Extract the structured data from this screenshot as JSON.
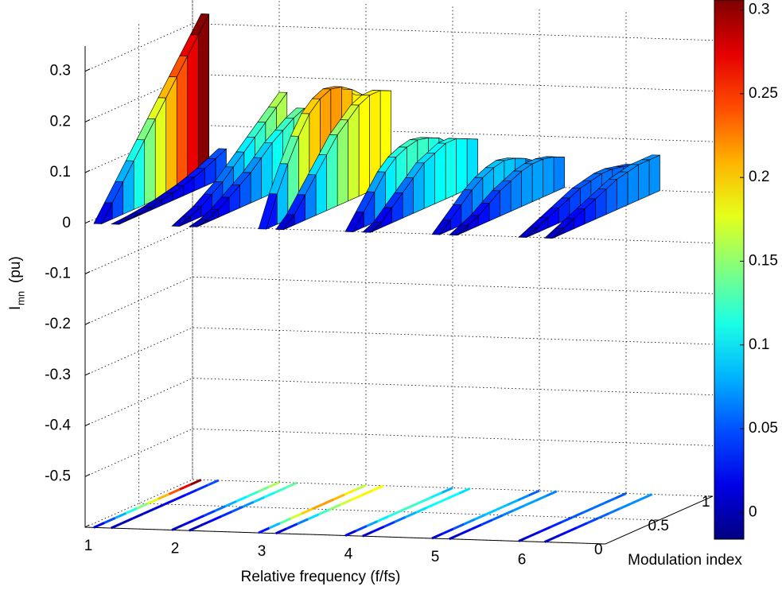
{
  "chart_data": {
    "type": "surface3d",
    "xlabel": "Relative frequency (f/fs)",
    "ylabel": "Modulation index",
    "zlabel": "I",
    "zlabel_sub": "mn",
    "zlabel_unit": "(pu)",
    "xlim": [
      1,
      7
    ],
    "xticks": [
      1,
      2,
      3,
      4,
      5,
      6
    ],
    "ylim": [
      0,
      1
    ],
    "yticks": [
      0,
      0.5,
      1
    ],
    "zlim": [
      -0.6,
      0.35
    ],
    "zticks": [
      -0.5,
      -0.4,
      -0.3,
      -0.2,
      -0.1,
      0,
      0.1,
      0.2,
      0.3
    ],
    "clim": [
      -0.016,
      0.306
    ],
    "cticks": [
      0,
      0.05,
      0.1,
      0.15,
      0.2,
      0.25,
      0.3
    ],
    "grid": true,
    "m": [
      0,
      0.1,
      0.2,
      0.3,
      0.4,
      0.5,
      0.6,
      0.7,
      0.8,
      0.9,
      1
    ],
    "series": [
      {
        "x": 1.1,
        "values": [
          0,
          0.032,
          0.064,
          0.096,
          0.128,
          0.16,
          0.192,
          0.224,
          0.256,
          0.288,
          0.32
        ]
      },
      {
        "x": 1.3,
        "values": [
          0,
          0.001,
          0.003,
          0.006,
          0.01,
          0.015,
          0.02,
          0.027,
          0.035,
          0.045,
          0.055
        ]
      },
      {
        "x": 2.0,
        "values": [
          0,
          0.01,
          0.02,
          0.035,
          0.05,
          0.07,
          0.09,
          0.11,
          0.13,
          0.15,
          0.17
        ]
      },
      {
        "x": 2.2,
        "values": [
          0,
          0.005,
          0.015,
          0.03,
          0.045,
          0.06,
          0.08,
          0.1,
          0.115,
          0.13,
          0.14
        ]
      },
      {
        "x": 3.0,
        "values": [
          0,
          0.06,
          0.11,
          0.155,
          0.19,
          0.21,
          0.22,
          0.215,
          0.2,
          0.18,
          0.15
        ]
      },
      {
        "x": 3.2,
        "values": [
          0,
          0.02,
          0.05,
          0.08,
          0.11,
          0.14,
          0.16,
          0.18,
          0.19,
          0.19,
          0.18
        ]
      },
      {
        "x": 4.0,
        "values": [
          0,
          0.03,
          0.06,
          0.09,
          0.11,
          0.12,
          0.125,
          0.12,
          0.11,
          0.09,
          0.07
        ]
      },
      {
        "x": 4.2,
        "values": [
          0,
          0.01,
          0.03,
          0.05,
          0.07,
          0.09,
          0.1,
          0.11,
          0.11,
          0.1,
          0.09
        ]
      },
      {
        "x": 5.0,
        "values": [
          0,
          0.02,
          0.04,
          0.06,
          0.075,
          0.085,
          0.09,
          0.085,
          0.075,
          0.06,
          0.05
        ]
      },
      {
        "x": 5.2,
        "values": [
          0,
          0.01,
          0.02,
          0.035,
          0.05,
          0.06,
          0.07,
          0.075,
          0.075,
          0.07,
          0.06
        ]
      },
      {
        "x": 6.0,
        "values": [
          0,
          0.01,
          0.02,
          0.03,
          0.04,
          0.05,
          0.055,
          0.06,
          0.06,
          0.055,
          0.05
        ]
      },
      {
        "x": 6.3,
        "values": [
          0,
          0.01,
          0.02,
          0.03,
          0.04,
          0.05,
          0.06,
          0.065,
          0.07,
          0.07,
          0.07
        ]
      }
    ]
  }
}
